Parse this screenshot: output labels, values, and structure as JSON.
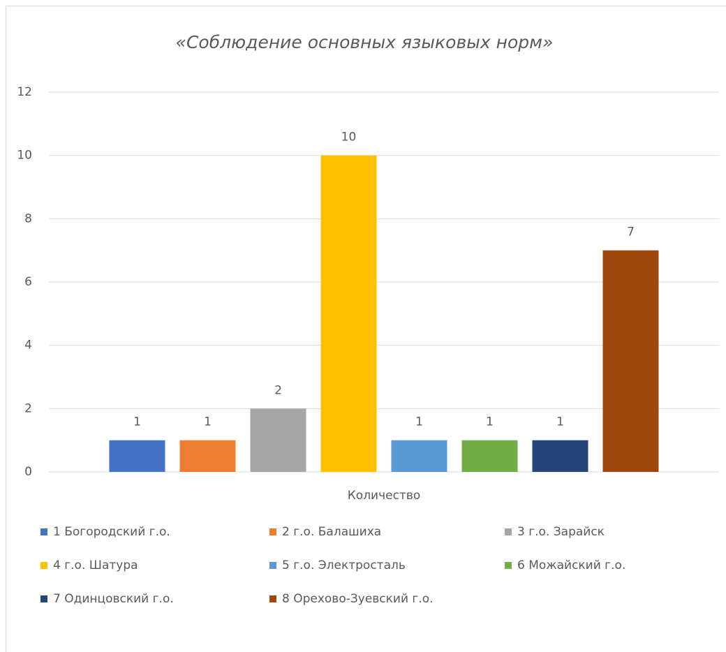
{
  "chart_data": {
    "type": "bar",
    "title": "«Соблюдение основных языковых норм»",
    "categories": [
      "Количество"
    ],
    "series": [
      {
        "name": "1 Богородский г.о.",
        "color": "#4472c4",
        "values": [
          1
        ]
      },
      {
        "name": "2 г.о. Балашиха",
        "color": "#ed7d31",
        "values": [
          1
        ]
      },
      {
        "name": "3 г.о. Зарайск",
        "color": "#a5a5a5",
        "values": [
          2
        ]
      },
      {
        "name": "4 г.о. Шатура",
        "color": "#ffc000",
        "values": [
          10
        ]
      },
      {
        "name": "5 г.о. Электросталь",
        "color": "#5b9bd5",
        "values": [
          1
        ]
      },
      {
        "name": "6 Можайский г.о.",
        "color": "#70ad47",
        "values": [
          1
        ]
      },
      {
        "name": "7 Одинцовский г.о.",
        "color": "#264478",
        "values": [
          1
        ]
      },
      {
        "name": "8 Орехово-Зуевский г.о.",
        "color": "#9e480e",
        "values": [
          7
        ]
      }
    ],
    "ylim": [
      0,
      12
    ],
    "yticks": [
      0,
      2,
      4,
      6,
      8,
      10,
      12
    ],
    "grid": true,
    "legend": "bottom"
  }
}
